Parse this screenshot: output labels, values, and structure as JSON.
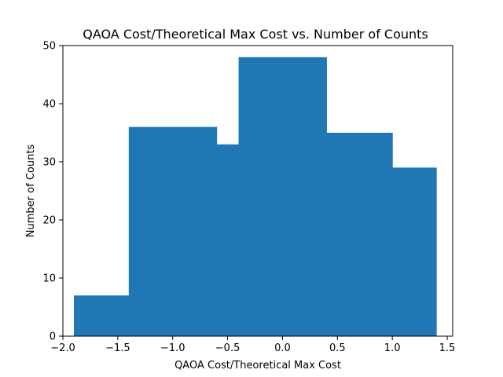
{
  "chart_data": {
    "type": "bar",
    "title": "QAOA Cost/Theoretical Max Cost vs. Number of Counts",
    "xlabel": "QAOA Cost/Theoretical Max Cost",
    "ylabel": "Number of Counts",
    "xlim": [
      -2.0,
      1.55
    ],
    "ylim": [
      0,
      50
    ],
    "xticks": [
      -2.0,
      -1.5,
      -1.0,
      -0.5,
      0.0,
      0.5,
      1.0,
      1.5
    ],
    "xtick_labels": [
      "−2.0",
      "−1.5",
      "−1.0",
      "−0.5",
      "0.0",
      "0.5",
      "1.0",
      "1.5"
    ],
    "yticks": [
      0,
      10,
      20,
      30,
      40,
      50
    ],
    "ytick_labels": [
      "0",
      "10",
      "20",
      "30",
      "40",
      "50"
    ],
    "grid": false,
    "bar_color": "#1f77b4",
    "bins": [
      {
        "x0": -1.9,
        "x1": -1.4,
        "value": 7
      },
      {
        "x0": -1.4,
        "x1": -0.6,
        "value": 36
      },
      {
        "x0": -0.6,
        "x1": -0.4,
        "value": 33
      },
      {
        "x0": -0.4,
        "x1": 0.4,
        "value": 48
      },
      {
        "x0": 0.4,
        "x1": 1.0,
        "value": 35
      },
      {
        "x0": 1.0,
        "x1": 1.4,
        "value": 29
      }
    ]
  }
}
